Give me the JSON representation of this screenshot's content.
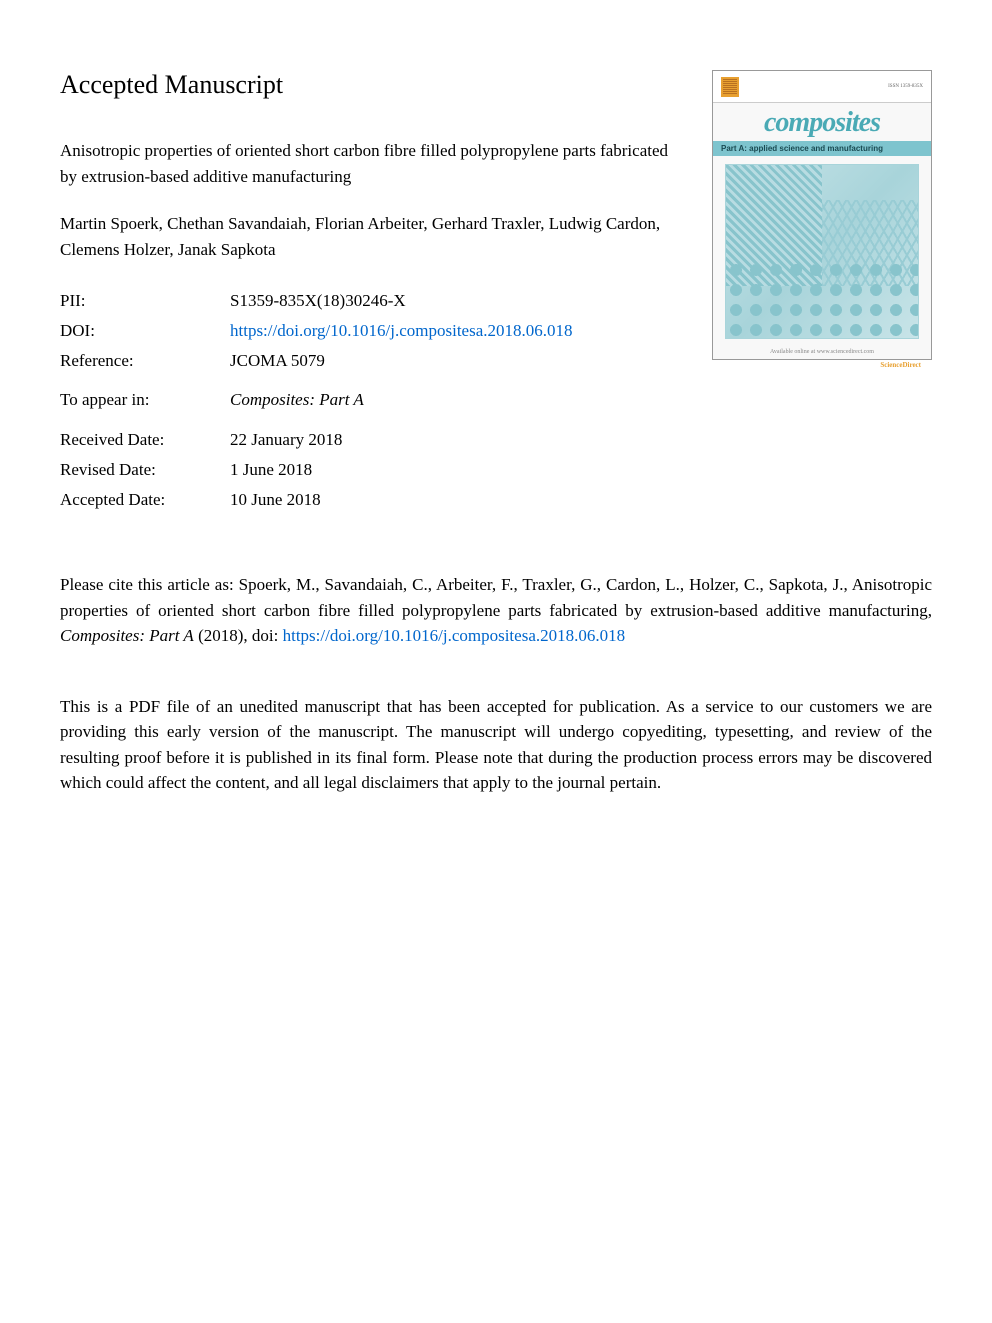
{
  "heading": "Accepted Manuscript",
  "article_title": "Anisotropic properties of oriented short carbon fibre filled polypropylene parts fabricated by extrusion-based additive manufacturing",
  "authors": "Martin Spoerk, Chethan Savandaiah, Florian Arbeiter, Gerhard Traxler, Ludwig Cardon, Clemens Holzer, Janak Sapkota",
  "metadata": {
    "pii_label": "PII:",
    "pii_value": "S1359-835X(18)30246-X",
    "doi_label": "DOI:",
    "doi_value": "https://doi.org/10.1016/j.compositesa.2018.06.018",
    "reference_label": "Reference:",
    "reference_value": "JCOMA 5079",
    "appear_label": "To appear in:",
    "appear_value": "Composites: Part A",
    "received_label": "Received Date:",
    "received_value": "22 January 2018",
    "revised_label": "Revised Date:",
    "revised_value": "1 June 2018",
    "accepted_label": "Accepted Date:",
    "accepted_value": "10 June 2018"
  },
  "cover": {
    "title": "composites",
    "subtitle": "Part A: applied science and manufacturing",
    "issn": "ISSN 1359-835X",
    "sciencedirect": "ScienceDirect",
    "footer_text": "Available online at www.sciencedirect.com"
  },
  "citation": {
    "prefix": "Please cite this article as: Spoerk, M., Savandaiah, C., Arbeiter, F., Traxler, G., Cardon, L., Holzer, C., Sapkota, J., Anisotropic properties of oriented short carbon fibre filled polypropylene parts fabricated by extrusion-based additive manufacturing, ",
    "journal": "Composites: Part A",
    "year": " (2018), doi: ",
    "link": "https://doi.org/10.1016/j.compositesa.2018.06.018"
  },
  "disclaimer": "This is a PDF file of an unedited manuscript that has been accepted for publication. As a service to our customers we are providing this early version of the manuscript. The manuscript will undergo copyediting, typesetting, and review of the resulting proof before it is published in its final form. Please note that during the production process errors may be discovered which could affect the content, and all legal disclaimers that apply to the journal pertain.",
  "colors": {
    "text": "#000000",
    "link": "#0066cc",
    "background": "#ffffff",
    "cover_title": "#4aaab5",
    "cover_subtitle_bg": "#7ec4ce",
    "cover_pattern": "#88c4cc"
  },
  "typography": {
    "body_font": "Georgia, Times New Roman, serif",
    "heading_size": 26,
    "body_size": 17
  }
}
